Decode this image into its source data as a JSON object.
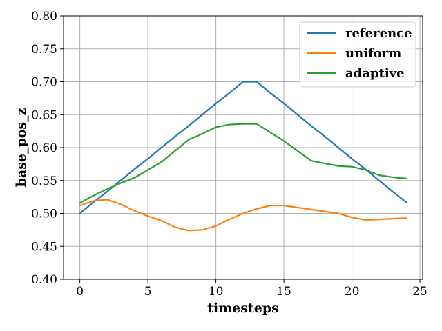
{
  "chart_data": {
    "type": "line",
    "title": "",
    "xlabel": "timesteps",
    "ylabel": "base_pos_z",
    "xlim": [
      -1.2,
      25.2
    ],
    "ylim": [
      0.4,
      0.8
    ],
    "xticks": [
      0,
      5,
      10,
      15,
      20,
      25
    ],
    "yticks": [
      0.4,
      0.45,
      0.5,
      0.55,
      0.6,
      0.65,
      0.7,
      0.75,
      0.8
    ],
    "xtick_labels": [
      "0",
      "5",
      "10",
      "15",
      "20",
      "25"
    ],
    "ytick_labels": [
      "0.40",
      "0.45",
      "0.50",
      "0.55",
      "0.60",
      "0.65",
      "0.70",
      "0.75",
      "0.80"
    ],
    "grid": true,
    "legend_position": "top-right",
    "x": [
      0,
      1,
      2,
      3,
      4,
      5,
      6,
      7,
      8,
      9,
      10,
      11,
      12,
      13,
      14,
      15,
      16,
      17,
      18,
      19,
      20,
      21,
      22,
      23,
      24
    ],
    "series": [
      {
        "name": "reference",
        "color": "#1f77b4",
        "values": [
          0.5,
          0.517,
          0.533,
          0.55,
          0.567,
          0.583,
          0.6,
          0.617,
          0.633,
          0.65,
          0.667,
          0.683,
          0.7,
          0.7,
          0.683,
          0.667,
          0.65,
          0.633,
          0.617,
          0.6,
          0.583,
          0.567,
          0.55,
          0.533,
          0.517
        ]
      },
      {
        "name": "uniform",
        "color": "#ff7f0e",
        "values": [
          0.512,
          0.519,
          0.521,
          0.514,
          0.504,
          0.496,
          0.489,
          0.479,
          0.474,
          0.475,
          0.481,
          0.491,
          0.5,
          0.507,
          0.512,
          0.512,
          0.509,
          0.506,
          0.503,
          0.5,
          0.494,
          0.49,
          0.491,
          0.492,
          0.493
        ]
      },
      {
        "name": "adaptive",
        "color": "#2ca02c",
        "values": [
          0.516,
          0.527,
          0.537,
          0.546,
          0.554,
          0.566,
          0.578,
          0.595,
          0.612,
          0.621,
          0.631,
          0.635,
          0.636,
          0.636,
          0.623,
          0.61,
          0.595,
          0.58,
          0.576,
          0.572,
          0.571,
          0.566,
          0.558,
          0.555,
          0.553
        ]
      }
    ]
  }
}
